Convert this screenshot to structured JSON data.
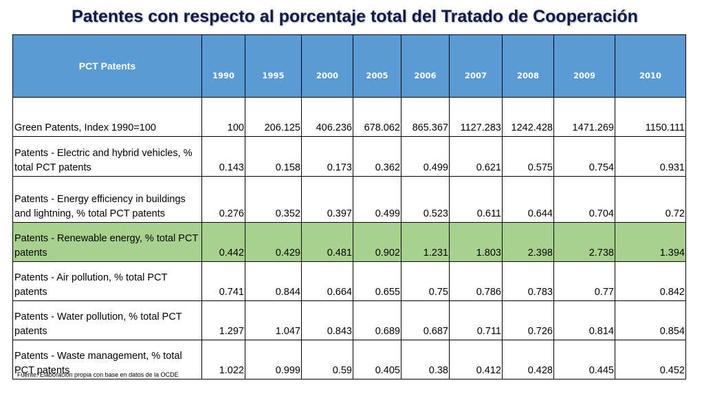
{
  "title": "Patentes con respecto al porcentaje total del Tratado de Cooperación",
  "table": {
    "header_label": "PCT Patents",
    "years": [
      "1990",
      "1995",
      "2000",
      "2005",
      "2006",
      "2007",
      "2008",
      "2009",
      "2010"
    ],
    "rows": [
      {
        "label": "Green Patents, Index 1990=100",
        "values": [
          "100",
          "206.125",
          "406.236",
          "678.062",
          "865.367",
          "1127.283",
          "1242.428",
          "1471.269",
          "1150.111"
        ]
      },
      {
        "label": "Patents -  Electric and hybrid vehicles, % total PCT patents",
        "values": [
          "0.143",
          "0.158",
          "0.173",
          "0.362",
          "0.499",
          "0.621",
          "0.575",
          "0.754",
          "0.931"
        ]
      },
      {
        "label": "Patents - Energy efficiency in buildings and lightning, % total PCT patents",
        "values": [
          "0.276",
          "0.352",
          "0.397",
          "0.499",
          "0.523",
          "0.611",
          "0.644",
          "0.704",
          "0.72"
        ]
      },
      {
        "label": "Patents - Renewable energy, % total PCT patents",
        "values": [
          "0.442",
          "0.429",
          "0.481",
          "0.902",
          "1.231",
          "1.803",
          "2.398",
          "2.738",
          "1.394"
        ]
      },
      {
        "label": "Patents - Air pollution, % total PCT patents",
        "values": [
          "0.741",
          "0.844",
          "0.664",
          "0.655",
          "0.75",
          "0.786",
          "0.783",
          "0.77",
          "0.842"
        ]
      },
      {
        "label": "Patents - Water pollution, % total PCT patents",
        "values": [
          "1.297",
          "1.047",
          "0.843",
          "0.689",
          "0.687",
          "0.711",
          "0.726",
          "0.814",
          "0.854"
        ]
      },
      {
        "label": "Patents - Waste management, % total PCT patents",
        "values": [
          "1.022",
          "0.999",
          "0.59",
          "0.405",
          "0.38",
          "0.412",
          "0.428",
          "0.445",
          "0.452"
        ]
      }
    ],
    "highlight_color": "#a9d18e",
    "header_color": "#5b9bd5"
  },
  "source": "Fuente: Elaboración propia con base en datos de la OCDE"
}
